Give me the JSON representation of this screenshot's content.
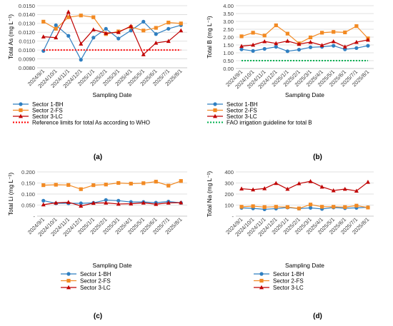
{
  "colors": {
    "sector1": "#2f7fc1",
    "sector2": "#f28a23",
    "sector3": "#c00000",
    "who_ref": "#ff0000",
    "fao_ref": "#00b050",
    "grid": "#d9d9d9",
    "axis_text": "#404040"
  },
  "chart_data": [
    {
      "panel": "(a)",
      "type": "line",
      "categories": [
        "2024/9/1",
        "2024/10/1",
        "2024/11/1",
        "2024/12/1",
        "2025/1/1",
        "2025/2/1",
        "2025/3/1",
        "2025/4/1",
        "2025/5/1",
        "2025/6/1",
        "2025/7/1",
        "2025/8/1"
      ],
      "xlabel": "Sampling Date",
      "ylabel": "Total As (mg L⁻¹)",
      "ylim": [
        0.008,
        0.015
      ],
      "yticks": [
        0.008,
        0.009,
        0.01,
        0.011,
        0.012,
        0.013,
        0.014,
        0.015
      ],
      "ytick_labels": [
        "0.0080",
        "0.0090",
        "0.0100",
        "0.0110",
        "0.0120",
        "0.0130",
        "0.0140",
        "0.0150"
      ],
      "grid": true,
      "legend_position": "bottom",
      "series": [
        {
          "name": "Sector 1-BH",
          "marker": "circle",
          "color_key": "sector1",
          "values": [
            0.0099,
            0.0128,
            0.0116,
            0.0089,
            0.0114,
            0.0124,
            0.0113,
            0.0122,
            0.0132,
            0.0118,
            0.0124,
            0.0128
          ]
        },
        {
          "name": "Sector 2-FS",
          "marker": "square",
          "color_key": "sector2",
          "values": [
            0.0132,
            0.0124,
            0.0137,
            0.0139,
            0.0137,
            0.0118,
            0.0121,
            0.0126,
            0.0122,
            0.0125,
            0.0131,
            0.013
          ]
        },
        {
          "name": "Sector 3-LC",
          "marker": "triangle",
          "color_key": "sector3",
          "values": [
            0.0115,
            0.0114,
            0.0143,
            0.0107,
            0.0123,
            0.0119,
            0.012,
            0.0127,
            0.0095,
            0.0108,
            0.011,
            0.0122
          ]
        },
        {
          "name": "Reference limits for total As according to WHO",
          "marker": "none",
          "dashed": true,
          "color_key": "who_ref",
          "values": [
            0.01,
            0.01,
            0.01,
            0.01,
            0.01,
            0.01,
            0.01,
            0.01,
            0.01,
            0.01,
            0.01,
            0.01
          ]
        }
      ]
    },
    {
      "panel": "(b)",
      "type": "line",
      "categories": [
        "2024/9/1",
        "2024/10/1",
        "2024/11/1",
        "2024/12/1",
        "2025/1/1",
        "2025/2/1",
        "2025/3/1",
        "2025/4/1",
        "2025/5/1",
        "2025/6/1",
        "2025/7/1",
        "2025/8/1"
      ],
      "xlabel": "Sampling Date",
      "ylabel": "Total B (mg L⁻¹)",
      "ylim": [
        0,
        4
      ],
      "yticks": [
        0,
        0.5,
        1,
        1.5,
        2,
        2.5,
        3,
        3.5,
        4
      ],
      "ytick_labels": [
        "0.00",
        "0.50",
        "1.00",
        "1.50",
        "2.00",
        "2.50",
        "3.00",
        "3.50",
        "4.00"
      ],
      "grid": true,
      "legend_position": "bottom",
      "series": [
        {
          "name": "Sector 1-BH",
          "marker": "circle",
          "color_key": "sector1",
          "values": [
            1.22,
            1.12,
            1.25,
            1.38,
            1.1,
            1.2,
            1.35,
            1.38,
            1.45,
            1.22,
            1.3,
            1.45
          ]
        },
        {
          "name": "Sector 2-FS",
          "marker": "square",
          "color_key": "sector2",
          "values": [
            2.05,
            2.28,
            2.1,
            2.75,
            2.22,
            1.6,
            1.98,
            2.28,
            2.33,
            2.3,
            2.7,
            1.92
          ]
        },
        {
          "name": "Sector 3-LC",
          "marker": "triangle",
          "color_key": "sector3",
          "values": [
            1.42,
            1.5,
            1.72,
            1.6,
            1.75,
            1.55,
            1.68,
            1.48,
            1.72,
            1.38,
            1.68,
            1.82
          ]
        },
        {
          "name": "FAO irrigation guideline for total B",
          "marker": "none",
          "dashed": true,
          "color_key": "fao_ref",
          "values": [
            0.5,
            0.5,
            0.5,
            0.5,
            0.5,
            0.5,
            0.5,
            0.5,
            0.5,
            0.5,
            0.5,
            0.5
          ]
        }
      ]
    },
    {
      "panel": "(c)",
      "type": "line",
      "categories": [
        "2024/9/1",
        "2024/10/1",
        "2024/11/1",
        "2024/12/1",
        "2025/1/1",
        "2025/2/1",
        "2025/3/1",
        "2025/4/1",
        "2025/5/1",
        "2025/6/1",
        "2025/7/1",
        "2025/8/1"
      ],
      "xlabel": "Sampling Date",
      "ylabel": "Total Li (mg L⁻¹)",
      "ylim": [
        0,
        0.2
      ],
      "yticks": [
        0,
        0.05,
        0.1,
        0.15,
        0.2
      ],
      "ytick_labels": [
        "-",
        "0.050",
        "0.100",
        "0.150",
        "0.200"
      ],
      "grid": true,
      "legend_position": "bottom",
      "series": [
        {
          "name": "Sector 1-BH",
          "marker": "circle",
          "color_key": "sector1",
          "values": [
            0.07,
            0.058,
            0.058,
            0.058,
            0.06,
            0.073,
            0.07,
            0.064,
            0.064,
            0.061,
            0.066,
            0.06
          ]
        },
        {
          "name": "Sector 2-FS",
          "marker": "square",
          "color_key": "sector2",
          "values": [
            0.14,
            0.142,
            0.141,
            0.122,
            0.14,
            0.143,
            0.15,
            0.147,
            0.149,
            0.156,
            0.138,
            0.159
          ]
        },
        {
          "name": "Sector 3-LC",
          "marker": "triangle",
          "color_key": "sector3",
          "values": [
            0.052,
            0.06,
            0.063,
            0.046,
            0.059,
            0.06,
            0.055,
            0.056,
            0.06,
            0.054,
            0.06,
            0.061
          ]
        }
      ]
    },
    {
      "panel": "(d)",
      "type": "line",
      "categories": [
        "2024/9/1",
        "2024/10/1",
        "2024/11/1",
        "2024/12/1",
        "2025/1/1",
        "2025/2/1",
        "2025/3/1",
        "2025/4/1",
        "2025/5/1",
        "2025/6/1",
        "2025/7/1",
        "2025/8/1"
      ],
      "xlabel": "Sampling Date",
      "ylabel": "Total Na (mg L⁻¹)",
      "ylim": [
        0,
        400
      ],
      "yticks": [
        0,
        100,
        200,
        300,
        400
      ],
      "ytick_labels": [
        "-",
        "100",
        "200",
        "300",
        "400"
      ],
      "grid": true,
      "legend_position": "bottom",
      "series": [
        {
          "name": "Sector 1-BH",
          "marker": "circle",
          "color_key": "sector1",
          "values": [
            75,
            70,
            62,
            68,
            78,
            68,
            75,
            65,
            78,
            72,
            75,
            80
          ]
        },
        {
          "name": "Sector 2-FS",
          "marker": "square",
          "color_key": "sector2",
          "values": [
            85,
            90,
            82,
            85,
            82,
            70,
            105,
            85,
            85,
            82,
            95,
            78
          ]
        },
        {
          "name": "Sector 3-LC",
          "marker": "triangle",
          "color_key": "sector3",
          "values": [
            248,
            240,
            250,
            298,
            245,
            295,
            315,
            265,
            232,
            245,
            228,
            308
          ]
        }
      ]
    }
  ]
}
